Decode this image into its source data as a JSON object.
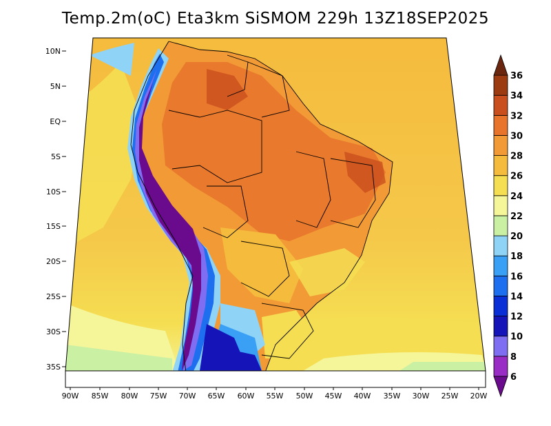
{
  "title": "Temp.2m(oC) Eta3km SiSMOM 229h 13Z18SEP2025",
  "map": {
    "lat_labels": [
      "10N",
      "5N",
      "EQ",
      "5S",
      "10S",
      "15S",
      "20S",
      "25S",
      "30S",
      "35S"
    ],
    "lon_labels": [
      "90W",
      "85W",
      "80W",
      "75W",
      "70W",
      "65W",
      "60W",
      "55W",
      "50W",
      "45W",
      "40W",
      "35W",
      "30W",
      "25W",
      "20W"
    ]
  },
  "colorbar": {
    "levels": [
      "6",
      "8",
      "10",
      "12",
      "14",
      "16",
      "18",
      "20",
      "22",
      "24",
      "26",
      "28",
      "30",
      "32",
      "34",
      "36"
    ],
    "colors": [
      "#6a0a8c",
      "#9a2cc6",
      "#7f6df2",
      "#1414b8",
      "#0a2fd6",
      "#1e6ff0",
      "#3aa0f5",
      "#8fd3f7",
      "#c9f0a3",
      "#f5f59a",
      "#f5de52",
      "#f5bb3d",
      "#f29a36",
      "#e8732a",
      "#c9501e",
      "#9c3a12",
      "#6b2610"
    ]
  }
}
